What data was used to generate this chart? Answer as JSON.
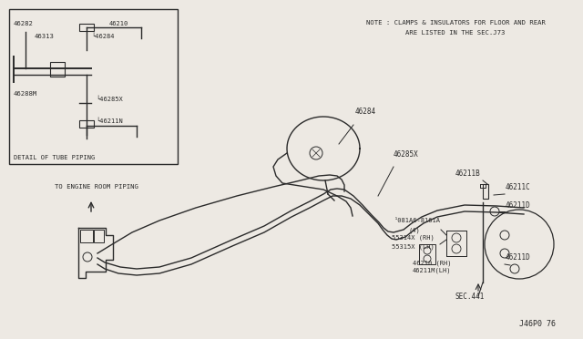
{
  "bg_color": "#ede9e3",
  "line_color": "#2a2a2a",
  "title": "J46P0 76",
  "note_line1": "NOTE : CLAMPS & INSULATORS FOR FLOOR AND REAR",
  "note_line2": "ARE LISTED IN THE SEC.J73",
  "detail_label": "DETAIL OF TUBE PIPING",
  "engine_label": "TO ENGINE ROOM PIPING",
  "figsize": [
    6.4,
    3.72
  ],
  "dpi": 100
}
